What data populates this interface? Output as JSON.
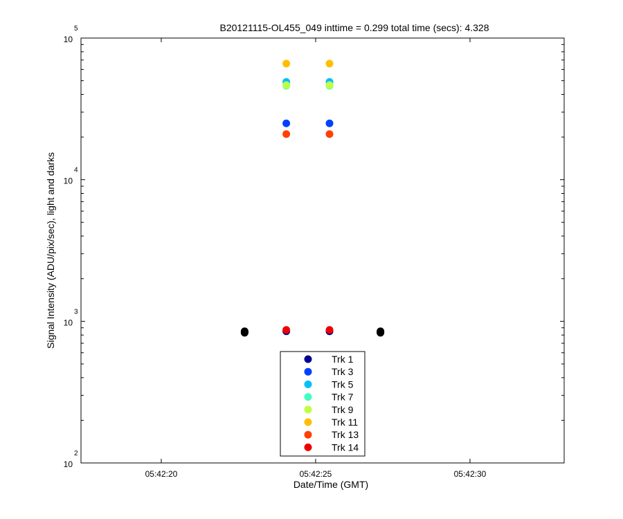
{
  "chart_data": {
    "type": "scatter",
    "title": "B20121115-OL455_049 inttime = 0.299 total time (secs): 4.328",
    "xlabel": "Date/Time (GMT)",
    "ylabel": "Signal Intensity (ADU/pix/sec), light and darks",
    "x_ticks": [
      {
        "t": 20,
        "label": "05:42:20"
      },
      {
        "t": 25,
        "label": "05:42:25"
      },
      {
        "t": 30,
        "label": "05:42:30"
      }
    ],
    "xlim": [
      17.4,
      33.05
    ],
    "y_scale": "log",
    "ylim": [
      100,
      100000
    ],
    "y_ticks": [
      {
        "value": 100,
        "base": "10",
        "exp": "2"
      },
      {
        "value": 1000,
        "base": "10",
        "exp": "3"
      },
      {
        "value": 10000,
        "base": "10",
        "exp": "4"
      },
      {
        "value": 100000,
        "base": "10",
        "exp": "5"
      }
    ],
    "legend_position": "bottom-center",
    "series": [
      {
        "name": "Trk 1",
        "color": "#00008f",
        "points": [
          [
            24.05,
            850
          ],
          [
            25.45,
            850
          ]
        ]
      },
      {
        "name": "Trk 3",
        "color": "#0040ff",
        "points": [
          [
            24.05,
            25000
          ],
          [
            25.45,
            25000
          ]
        ]
      },
      {
        "name": "Trk 5",
        "color": "#00bfff",
        "points": [
          [
            24.05,
            49000
          ],
          [
            25.45,
            49000
          ]
        ]
      },
      {
        "name": "Trk 7",
        "color": "#40ffbf",
        "points": [
          [
            24.05,
            46000
          ],
          [
            25.45,
            46000
          ]
        ]
      },
      {
        "name": "Trk 9",
        "color": "#bfff40",
        "points": [
          [
            24.05,
            46500
          ],
          [
            25.45,
            46500
          ]
        ]
      },
      {
        "name": "Trk 11",
        "color": "#ffbf00",
        "points": [
          [
            24.05,
            66000
          ],
          [
            25.45,
            66000
          ]
        ]
      },
      {
        "name": "Trk 13",
        "color": "#ff4000",
        "points": [
          [
            24.05,
            21000
          ],
          [
            25.45,
            21000
          ]
        ]
      },
      {
        "name": "Trk 14",
        "color": "#ef0000",
        "points": [
          [
            24.05,
            870
          ],
          [
            25.45,
            870
          ]
        ]
      }
    ],
    "dark_points": {
      "color": "#000000",
      "points": [
        [
          22.7,
          830
        ],
        [
          22.7,
          850
        ],
        [
          22.7,
          840
        ],
        [
          27.1,
          830
        ],
        [
          27.1,
          850
        ],
        [
          27.1,
          840
        ]
      ]
    }
  }
}
